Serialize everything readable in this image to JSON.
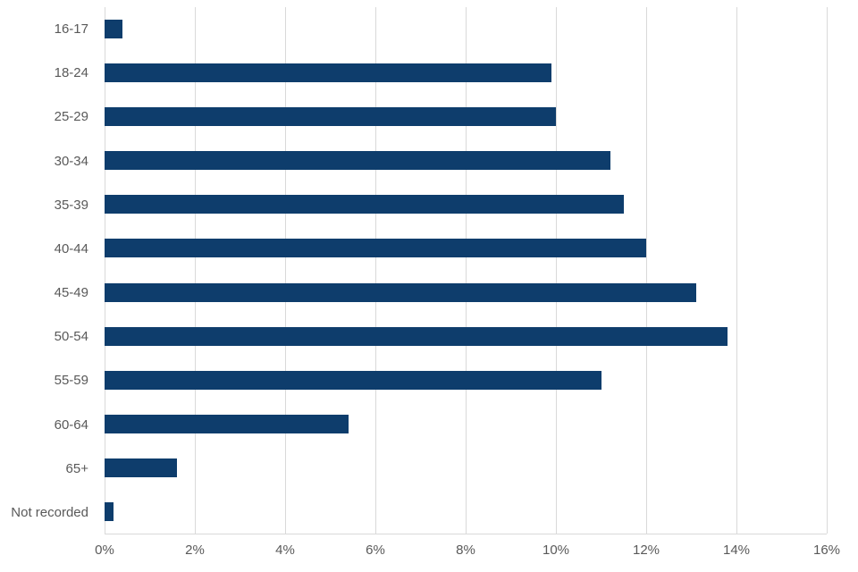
{
  "chart_data": {
    "type": "bar",
    "orientation": "horizontal",
    "title": "",
    "xlabel": "",
    "ylabel": "",
    "categories": [
      "16-17",
      "18-24",
      "25-29",
      "30-34",
      "35-39",
      "40-44",
      "45-49",
      "50-54",
      "55-59",
      "60-64",
      "65+",
      "Not recorded"
    ],
    "values": [
      0.4,
      9.9,
      10.0,
      11.2,
      11.5,
      12.0,
      13.1,
      13.8,
      11.0,
      5.4,
      1.6,
      0.2
    ],
    "value_unit": "%",
    "xlim": [
      0,
      16
    ],
    "xticks": [
      0,
      2,
      4,
      6,
      8,
      10,
      12,
      14,
      16
    ],
    "xtick_labels": [
      "0%",
      "2%",
      "4%",
      "6%",
      "8%",
      "10%",
      "12%",
      "14%",
      "16%"
    ],
    "grid": true,
    "legend": false,
    "colors": {
      "bar": "#0e3d6c",
      "gridline": "#d9d9d9",
      "axis_text": "#595959",
      "background": "#ffffff"
    }
  }
}
